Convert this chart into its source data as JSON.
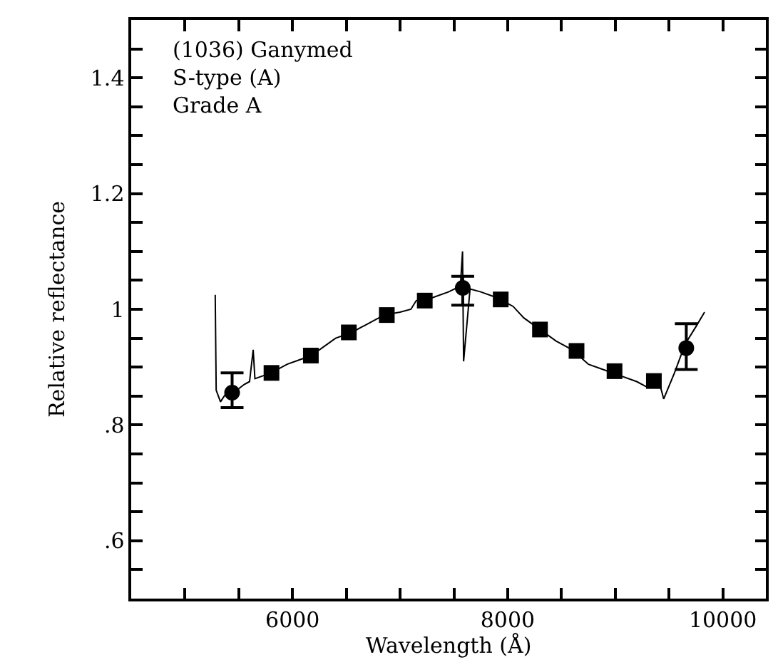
{
  "chart_data": {
    "type": "scatter",
    "xlabel": "Wavelength (Å)",
    "ylabel": "Relative reflectance",
    "annotations": [
      "(1036) Ganymed\nS-type (A)\nGrade A"
    ],
    "xlim": [
      4500,
      10400
    ],
    "ylim": [
      0.5,
      1.5
    ],
    "xticks": [
      {
        "value": 5000,
        "label": null
      },
      {
        "value": 5500,
        "label": null
      },
      6000,
      {
        "value": 6500,
        "label": null
      },
      {
        "value": 7000,
        "label": null
      },
      {
        "value": 7500,
        "label": null
      },
      8000,
      {
        "value": 8500,
        "label": null
      },
      {
        "value": 9000,
        "label": null
      },
      {
        "value": 9500,
        "label": null
      },
      10000
    ],
    "yticks": [
      {
        "value": 0.55,
        "label": null
      },
      {
        "value": 0.6,
        "label": ".6"
      },
      {
        "value": 0.65,
        "label": null
      },
      {
        "value": 0.7,
        "label": null
      },
      {
        "value": 0.75,
        "label": null
      },
      {
        "value": 0.8,
        "label": ".8"
      },
      {
        "value": 0.85,
        "label": null
      },
      {
        "value": 0.9,
        "label": null
      },
      {
        "value": 0.95,
        "label": null
      },
      1,
      {
        "value": 1.05,
        "label": null
      },
      {
        "value": 1.1,
        "label": null
      },
      {
        "value": 1.15,
        "label": null
      },
      1.2,
      {
        "value": 1.25,
        "label": null
      },
      {
        "value": 1.3,
        "label": null
      },
      {
        "value": 1.35,
        "label": null
      },
      1.4,
      {
        "value": 1.45,
        "label": null
      }
    ],
    "series": [
      {
        "type": "line",
        "color": "#000000",
        "marker": "none",
        "line_style": "solid",
        "x": [
          5281,
          5290,
          5330,
          5400,
          5480,
          5550,
          5600,
          5634,
          5650,
          5800,
          5950,
          6100,
          6250,
          6400,
          6550,
          6700,
          6850,
          7000,
          7100,
          7150,
          7300,
          7450,
          7560,
          7580,
          7590,
          7650,
          7750,
          7900,
          8050,
          8150,
          8300,
          8450,
          8600,
          8750,
          8900,
          9050,
          9200,
          9300,
          9400,
          9450,
          9550,
          9650,
          9750,
          9830
        ],
        "values": [
          1.025,
          0.86,
          0.84,
          0.86,
          0.86,
          0.87,
          0.875,
          0.93,
          0.88,
          0.89,
          0.905,
          0.915,
          0.93,
          0.95,
          0.96,
          0.975,
          0.99,
          0.995,
          1.0,
          1.015,
          1.02,
          1.03,
          1.04,
          1.1,
          0.91,
          1.035,
          1.03,
          1.02,
          1.005,
          0.985,
          0.965,
          0.945,
          0.93,
          0.905,
          0.895,
          0.885,
          0.875,
          0.865,
          0.88,
          0.845,
          0.89,
          0.94,
          0.97,
          0.995
        ]
      },
      {
        "color": "#000000",
        "marker": "square",
        "x": [
          5804,
          6170,
          6523,
          6876,
          7229,
          7935,
          8300,
          8640,
          8993,
          9359
        ],
        "values": [
          0.89,
          0.92,
          0.96,
          0.99,
          1.015,
          1.017,
          0.965,
          0.928,
          0.893,
          0.876
        ]
      },
      {
        "color": "#000000",
        "marker": "circle",
        "x": [
          5438,
          7582,
          9660
        ],
        "values": [
          0.856,
          1.037,
          0.933
        ],
        "errors": [
          [
            0.83,
            0.89
          ],
          [
            1.007,
            1.057
          ],
          [
            0.896,
            0.975
          ]
        ]
      }
    ]
  }
}
